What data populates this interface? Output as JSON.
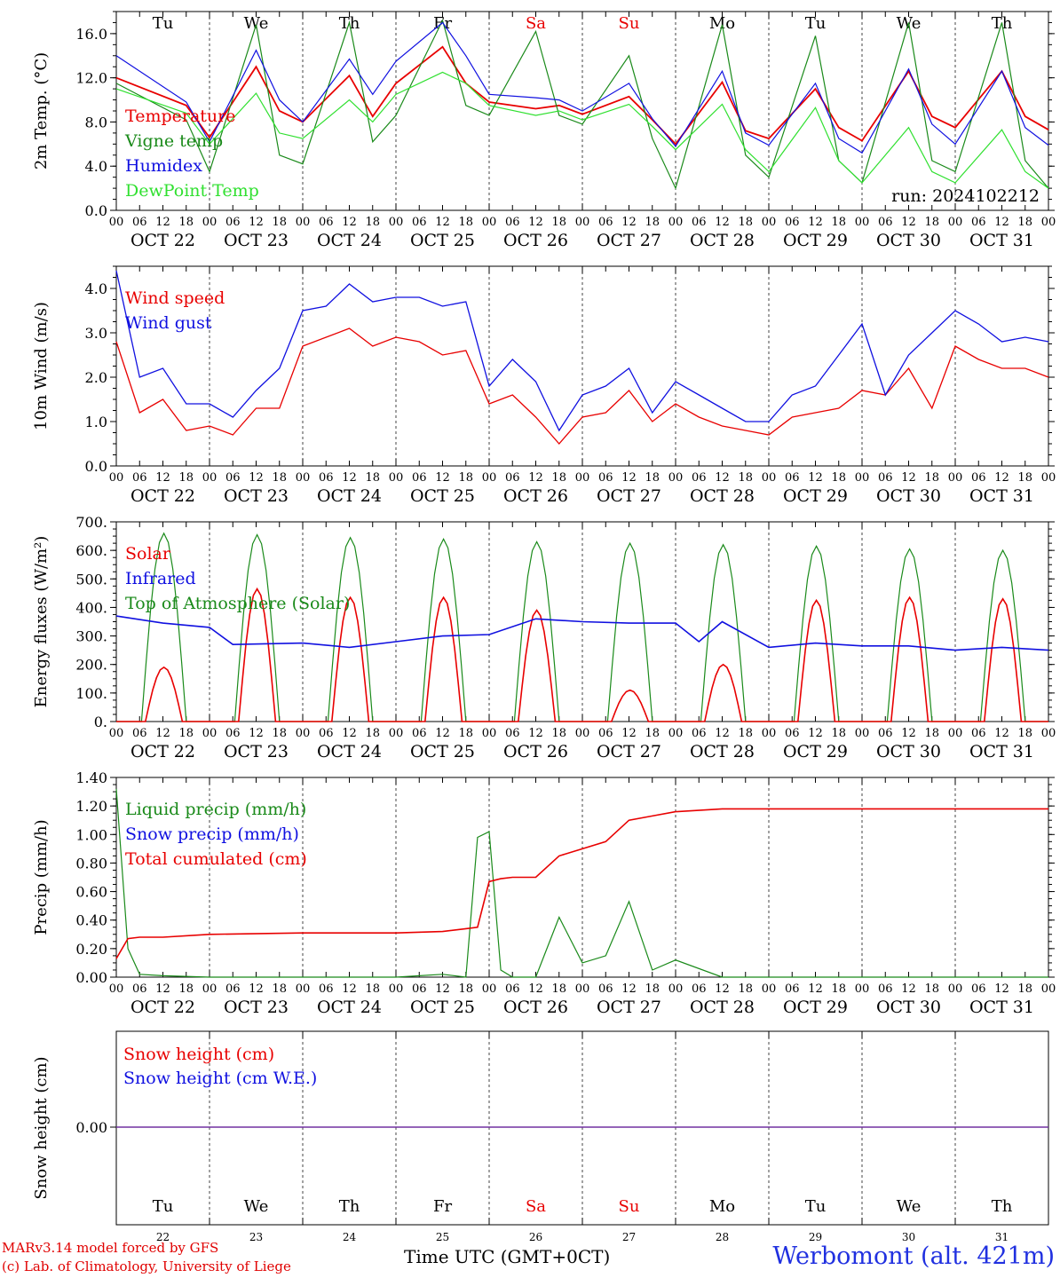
{
  "colors": {
    "red": "#e80000",
    "green": "#1a8a1a",
    "blue": "#1010e0",
    "lightgreen": "#30e030",
    "purple": "#7030a0",
    "weekend": "#e80000",
    "station": "#2030e0"
  },
  "days": [
    {
      "abbr": "Tu",
      "date": "OCT 22",
      "num": "22",
      "weekend": false
    },
    {
      "abbr": "We",
      "date": "OCT 23",
      "num": "23",
      "weekend": false
    },
    {
      "abbr": "Th",
      "date": "OCT 24",
      "num": "24",
      "weekend": false
    },
    {
      "abbr": "Fr",
      "date": "OCT 25",
      "num": "25",
      "weekend": false
    },
    {
      "abbr": "Sa",
      "date": "OCT 26",
      "num": "26",
      "weekend": true
    },
    {
      "abbr": "Su",
      "date": "OCT 27",
      "num": "27",
      "weekend": true
    },
    {
      "abbr": "Mo",
      "date": "OCT 28",
      "num": "28",
      "weekend": false
    },
    {
      "abbr": "Tu",
      "date": "OCT 29",
      "num": "29",
      "weekend": false
    },
    {
      "abbr": "We",
      "date": "OCT 30",
      "num": "30",
      "weekend": false
    },
    {
      "abbr": "Th",
      "date": "OCT 31",
      "num": "31",
      "weekend": false
    }
  ],
  "hour_labels": [
    "00",
    "06",
    "12",
    "18"
  ],
  "final_hour_label": "00",
  "run_label": "run: 2024102212",
  "footer": {
    "model": "MARv3.14 model forced by GFS",
    "lab": "(c) Lab. of Climatology, University of Liege",
    "xlabel": "Time UTC (GMT+0CT)",
    "station": "Werbomont (alt. 421m)"
  },
  "chart_data": [
    {
      "type": "line",
      "ylabel": "2m Temp. (°C)",
      "ylim": [
        0,
        18
      ],
      "yticks": [
        "0.0",
        "4.0",
        "8.0",
        "12.0",
        "16.0"
      ],
      "x_hours": [
        0,
        18,
        24,
        36,
        42,
        48,
        60,
        66,
        72,
        84,
        90,
        96,
        108,
        114,
        120,
        132,
        138,
        144,
        156,
        162,
        168,
        180,
        186,
        192,
        204,
        210,
        216,
        228,
        234,
        240
      ],
      "series": [
        {
          "name": "Temperature",
          "color": "red",
          "values": [
            12.0,
            9.5,
            6.6,
            13.0,
            9.0,
            8.0,
            12.2,
            8.5,
            11.5,
            14.8,
            11.5,
            9.8,
            9.2,
            9.5,
            8.7,
            10.3,
            8.2,
            6.0,
            11.6,
            7.2,
            6.5,
            11.0,
            7.5,
            6.3,
            12.6,
            8.5,
            7.5,
            12.6,
            8.5,
            7.3
          ]
        },
        {
          "name": "Vigne temp",
          "color": "green",
          "values": [
            11.5,
            8.2,
            3.5,
            16.8,
            5.0,
            4.2,
            17.0,
            6.2,
            8.6,
            17.2,
            9.5,
            8.6,
            16.2,
            8.6,
            7.8,
            14.0,
            6.5,
            2.0,
            16.8,
            5.0,
            3.0,
            15.8,
            4.5,
            2.5,
            17.0,
            4.5,
            3.5,
            17.0,
            4.5,
            2.0
          ]
        },
        {
          "name": "Humidex",
          "color": "blue",
          "values": [
            14.0,
            9.8,
            6.2,
            14.5,
            10.0,
            8.0,
            13.7,
            10.5,
            13.5,
            17.0,
            14.0,
            10.5,
            10.2,
            10.0,
            9.0,
            11.5,
            8.3,
            5.8,
            12.6,
            7.0,
            5.9,
            11.5,
            6.5,
            5.2,
            12.8,
            7.8,
            6.0,
            12.6,
            7.5,
            5.9
          ]
        },
        {
          "name": "DewPoint Temp",
          "color": "lightgreen",
          "values": [
            11.0,
            8.8,
            6.0,
            10.6,
            7.0,
            6.5,
            10.0,
            8.0,
            10.5,
            12.5,
            11.5,
            9.5,
            8.6,
            9.0,
            8.2,
            9.6,
            7.6,
            5.5,
            9.6,
            5.5,
            3.5,
            9.3,
            4.5,
            2.5,
            7.5,
            3.5,
            2.5,
            7.3,
            3.5,
            2.0
          ]
        }
      ],
      "annotations": [
        "run: 2024102212"
      ]
    },
    {
      "type": "line",
      "ylabel": "10m Wind (m/s)",
      "ylim": [
        0,
        4.5
      ],
      "yticks": [
        "0.0",
        "1.0",
        "2.0",
        "3.0",
        "4.0"
      ],
      "x_hours": [
        0,
        6,
        12,
        18,
        24,
        30,
        36,
        42,
        48,
        54,
        60,
        66,
        72,
        78,
        84,
        90,
        96,
        102,
        108,
        114,
        120,
        126,
        132,
        138,
        144,
        150,
        156,
        162,
        168,
        174,
        180,
        186,
        192,
        198,
        204,
        210,
        216,
        222,
        228,
        234,
        240
      ],
      "series": [
        {
          "name": "Wind speed",
          "color": "red",
          "values": [
            2.8,
            1.2,
            1.5,
            0.8,
            0.9,
            0.7,
            1.3,
            1.3,
            2.7,
            2.9,
            3.1,
            2.7,
            2.9,
            2.8,
            2.5,
            2.6,
            1.4,
            1.6,
            1.1,
            0.5,
            1.1,
            1.2,
            1.7,
            1.0,
            1.4,
            1.1,
            0.9,
            0.8,
            0.7,
            1.1,
            1.2,
            1.3,
            1.7,
            1.6,
            2.2,
            1.3,
            2.7,
            2.4,
            2.2,
            2.2,
            2.0
          ]
        },
        {
          "name": "Wind gust",
          "color": "blue",
          "values": [
            4.4,
            2.0,
            2.2,
            1.4,
            1.4,
            1.1,
            1.7,
            2.2,
            3.5,
            3.6,
            4.1,
            3.7,
            3.8,
            3.8,
            3.6,
            3.7,
            1.8,
            2.4,
            1.9,
            0.8,
            1.6,
            1.8,
            2.2,
            1.2,
            1.9,
            1.6,
            1.3,
            1.0,
            1.0,
            1.6,
            1.8,
            2.5,
            3.2,
            1.6,
            2.5,
            3.0,
            3.5,
            3.2,
            2.8,
            2.9,
            2.8
          ]
        }
      ]
    },
    {
      "type": "line",
      "ylabel": "Energy fluxes (W/m²)",
      "ylim": [
        0,
        700
      ],
      "yticks": [
        "0.",
        "100.",
        "200.",
        "300.",
        "400.",
        "500.",
        "600.",
        "700."
      ],
      "solar_peaks": [
        190,
        465,
        435,
        435,
        390,
        110,
        200,
        425,
        435,
        430
      ],
      "toa_peaks": [
        660,
        655,
        645,
        640,
        630,
        625,
        620,
        615,
        605,
        600
      ],
      "x_hours": [
        0,
        12,
        24,
        30,
        48,
        60,
        72,
        84,
        96,
        108,
        120,
        132,
        144,
        150,
        156,
        168,
        180,
        192,
        204,
        216,
        228,
        240
      ],
      "series": [
        {
          "name": "Solar",
          "color": "red",
          "values": []
        },
        {
          "name": "Infrared",
          "color": "blue",
          "values": [
            370,
            345,
            330,
            270,
            275,
            260,
            280,
            300,
            305,
            360,
            350,
            345,
            345,
            280,
            350,
            260,
            275,
            265,
            265,
            250,
            260,
            250
          ]
        },
        {
          "name": "Top of Atmosphere (Solar)",
          "color": "green",
          "values": []
        }
      ]
    },
    {
      "type": "line",
      "ylabel": "Precip (mm/h)",
      "ylim": [
        0,
        1.4
      ],
      "yticks": [
        "0.00",
        "0.20",
        "0.40",
        "0.60",
        "0.80",
        "1.00",
        "1.20",
        "1.40"
      ],
      "x_hours": [
        0,
        3,
        6,
        12,
        24,
        48,
        72,
        84,
        90,
        93,
        96,
        99,
        102,
        108,
        114,
        120,
        126,
        132,
        138,
        144,
        156,
        168,
        240
      ],
      "series": [
        {
          "name": "Liquid precip (mm/h)",
          "color": "green",
          "values": [
            1.32,
            0.2,
            0.02,
            0.01,
            0.0,
            0.0,
            0.0,
            0.02,
            0.0,
            0.98,
            1.02,
            0.05,
            0.0,
            0.0,
            0.42,
            0.1,
            0.15,
            0.53,
            0.05,
            0.12,
            0.0,
            0.0,
            0.0
          ]
        },
        {
          "name": "Snow precip (mm/h)",
          "color": "blue",
          "values": []
        },
        {
          "name": "Total cumulated (cm)",
          "color": "red",
          "values": [
            0.13,
            0.27,
            0.28,
            0.28,
            0.3,
            0.31,
            0.31,
            0.32,
            0.34,
            0.35,
            0.67,
            0.69,
            0.7,
            0.7,
            0.85,
            0.9,
            0.95,
            1.1,
            1.13,
            1.16,
            1.18,
            1.18,
            1.18
          ]
        }
      ]
    },
    {
      "type": "line",
      "ylabel": "Snow height (cm)",
      "yticks": [
        "0.00"
      ],
      "series": [
        {
          "name": "Snow height (cm)",
          "color": "red",
          "values": [
            0.0,
            0.0
          ]
        },
        {
          "name": "Snow height (cm W.E.)",
          "color": "blue",
          "values": [
            0.0,
            0.0
          ]
        }
      ]
    }
  ]
}
